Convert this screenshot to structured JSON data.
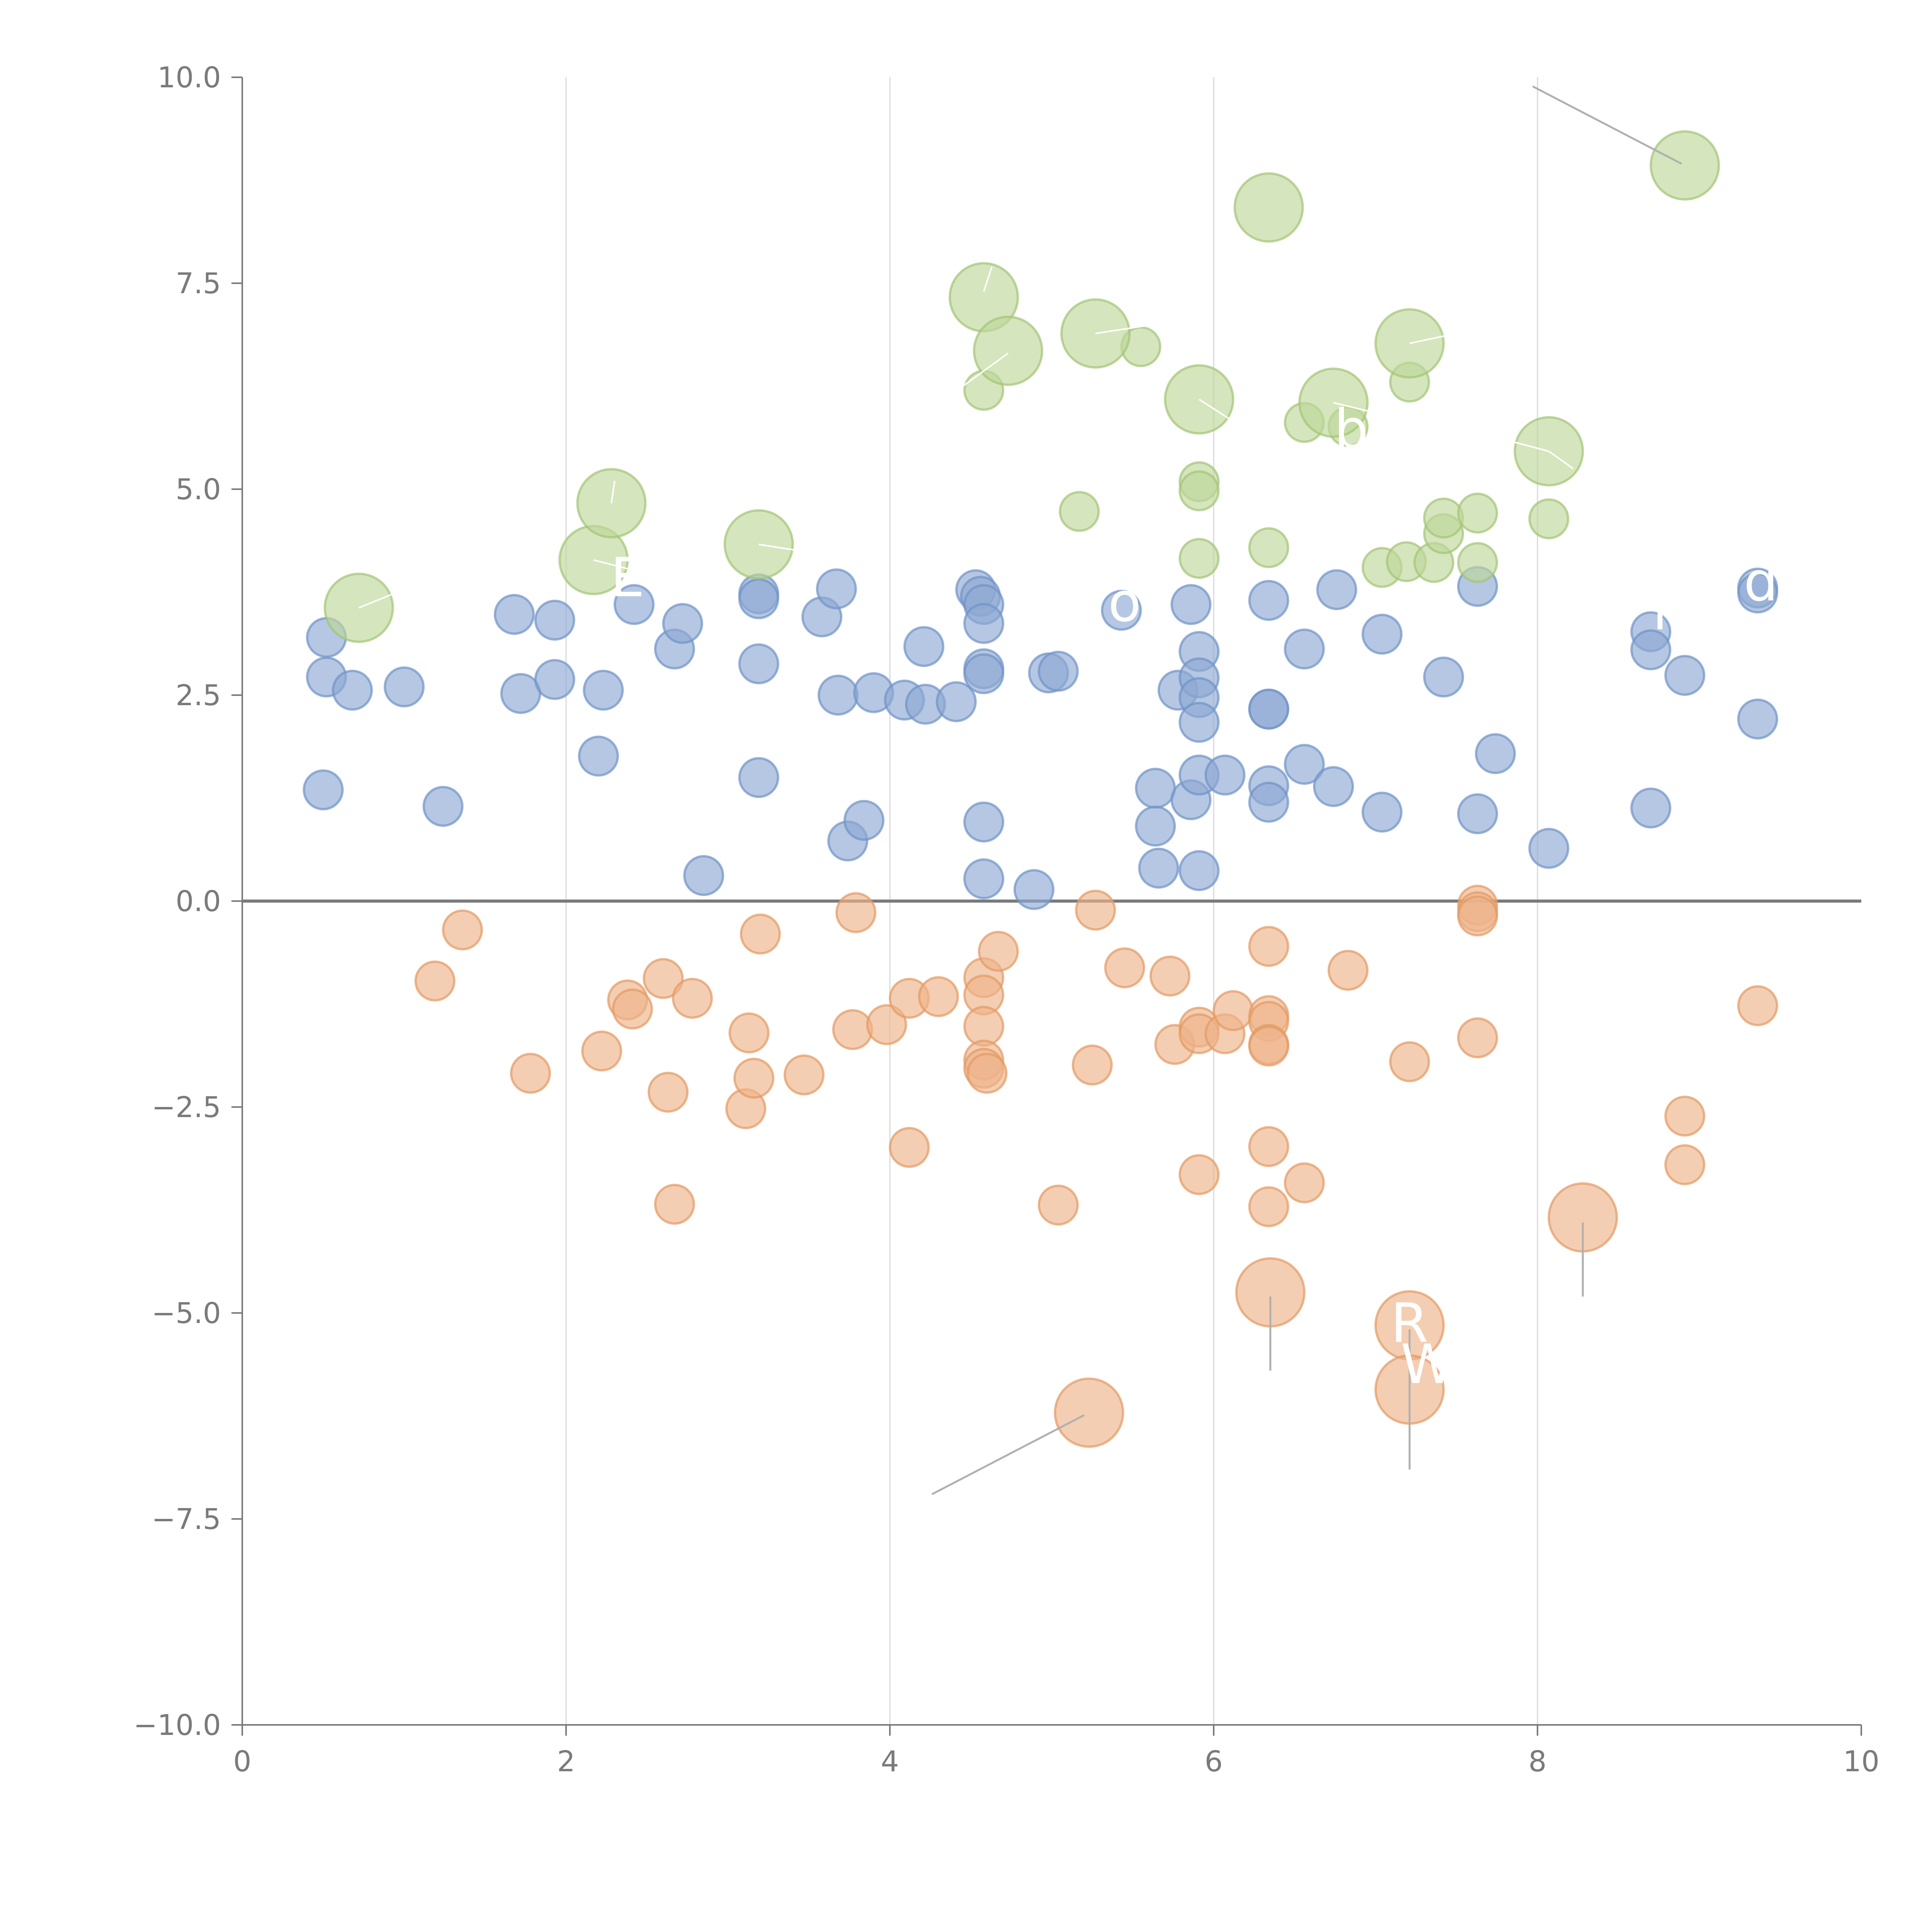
{
  "chart_data": {
    "type": "scatter",
    "title": "",
    "xlabel": "",
    "ylabel": "",
    "xlim": [
      0,
      10
    ],
    "ylim": [
      -10,
      10
    ],
    "xticks": [
      0,
      2,
      4,
      6,
      8,
      10
    ],
    "yticks": [
      -10,
      -7.5,
      -5,
      -2.5,
      0,
      2.5,
      5,
      7.5,
      10
    ],
    "xtick_labels": [
      "0",
      "2",
      "4",
      "6",
      "8",
      "10"
    ],
    "ytick_labels": [
      "−10.0",
      "−7.5",
      "−5.0",
      "−2.5",
      "0.0",
      "2.5",
      "5.0",
      "7.5",
      "10.0"
    ],
    "grid": "vertical",
    "zero_line": 0,
    "colors": {
      "neutral": "#8da9d3",
      "neutral_edge": "#6f93c8",
      "negative": "#eeb48b",
      "negative_edge": "#e39a62",
      "positive": "#bfd79a",
      "positive_edge": "#a3c475",
      "axis": "#7a7a7a",
      "grid": "#d9d9d9",
      "leader": "#b0b0b0"
    },
    "series": [
      {
        "name": "neutral",
        "color_key": "neutral",
        "points": [
          [
            0.5,
            1.35,
            1
          ],
          [
            0.52,
            2.72,
            1
          ],
          [
            0.52,
            3.2,
            1
          ],
          [
            0.68,
            2.56,
            1
          ],
          [
            1.0,
            2.6,
            1
          ],
          [
            1.24,
            1.15,
            1
          ],
          [
            1.68,
            3.48,
            1
          ],
          [
            1.72,
            2.52,
            1
          ],
          [
            1.93,
            3.41,
            1
          ],
          [
            1.93,
            2.69,
            1
          ],
          [
            2.2,
            1.76,
            1
          ],
          [
            2.23,
            2.56,
            1
          ],
          [
            2.42,
            3.6,
            1
          ],
          [
            2.67,
            3.06,
            1
          ],
          [
            2.72,
            3.37,
            1
          ],
          [
            2.85,
            0.31,
            1
          ],
          [
            3.19,
            3.73,
            1
          ],
          [
            3.19,
            3.67,
            1
          ],
          [
            3.19,
            2.88,
            1
          ],
          [
            3.19,
            1.5,
            1
          ],
          [
            3.58,
            3.45,
            1
          ],
          [
            3.67,
            3.79,
            1
          ],
          [
            3.68,
            2.5,
            1
          ],
          [
            3.74,
            0.73,
            1
          ],
          [
            3.84,
            0.98,
            1
          ],
          [
            3.9,
            2.53,
            1
          ],
          [
            4.09,
            2.44,
            1
          ],
          [
            4.21,
            3.09,
            1
          ],
          [
            4.22,
            2.39,
            1
          ],
          [
            4.41,
            2.42,
            1
          ],
          [
            4.53,
            3.78,
            1
          ],
          [
            4.56,
            3.7,
            1
          ],
          [
            4.58,
            3.6,
            1
          ],
          [
            4.58,
            3.37,
            1
          ],
          [
            4.58,
            2.82,
            1
          ],
          [
            4.58,
            2.76,
            1
          ],
          [
            4.58,
            0.96,
            1
          ],
          [
            4.58,
            0.27,
            1
          ],
          [
            4.89,
            0.14,
            1
          ],
          [
            4.98,
            2.77,
            1
          ],
          [
            5.04,
            2.79,
            1
          ],
          [
            5.43,
            3.53,
            1
          ],
          [
            5.64,
            1.37,
            1
          ],
          [
            5.64,
            0.91,
            1
          ],
          [
            5.66,
            0.4,
            1
          ],
          [
            5.78,
            2.56,
            1
          ],
          [
            5.86,
            3.6,
            1
          ],
          [
            5.86,
            1.23,
            1
          ],
          [
            5.91,
            3.03,
            1
          ],
          [
            5.91,
            2.71,
            1
          ],
          [
            5.91,
            2.47,
            1
          ],
          [
            5.91,
            2.17,
            1
          ],
          [
            5.91,
            1.53,
            1
          ],
          [
            5.91,
            0.37,
            1
          ],
          [
            6.07,
            1.53,
            1
          ],
          [
            6.34,
            3.65,
            1
          ],
          [
            6.34,
            2.33,
            1
          ],
          [
            6.34,
            2.33,
            1
          ],
          [
            6.34,
            1.4,
            1
          ],
          [
            6.34,
            1.2,
            1
          ],
          [
            6.56,
            3.06,
            1
          ],
          [
            6.56,
            1.66,
            1
          ],
          [
            6.74,
            1.39,
            1
          ],
          [
            6.76,
            3.78,
            1
          ],
          [
            7.04,
            3.24,
            1
          ],
          [
            7.04,
            1.08,
            1
          ],
          [
            7.42,
            2.72,
            1
          ],
          [
            7.63,
            3.82,
            1
          ],
          [
            7.63,
            1.06,
            1
          ],
          [
            7.74,
            1.79,
            1
          ],
          [
            8.07,
            0.64,
            1
          ],
          [
            8.7,
            3.27,
            1
          ],
          [
            8.7,
            3.05,
            1
          ],
          [
            8.7,
            1.13,
            1
          ],
          [
            8.91,
            2.74,
            1
          ],
          [
            9.36,
            3.8,
            1
          ],
          [
            9.36,
            3.74,
            1
          ],
          [
            9.36,
            2.21,
            1
          ]
        ]
      },
      {
        "name": "negative",
        "color_key": "negative",
        "points": [
          [
            1.19,
            -0.97,
            1
          ],
          [
            1.36,
            -0.35,
            1
          ],
          [
            1.78,
            -2.09,
            1
          ],
          [
            2.22,
            -1.82,
            1
          ],
          [
            2.38,
            -1.2,
            1
          ],
          [
            2.41,
            -1.31,
            1
          ],
          [
            2.6,
            -0.94,
            1
          ],
          [
            2.63,
            -2.32,
            1
          ],
          [
            2.67,
            -3.68,
            1
          ],
          [
            2.78,
            -1.18,
            1
          ],
          [
            3.11,
            -2.52,
            1
          ],
          [
            3.13,
            -1.6,
            1
          ],
          [
            3.16,
            -2.15,
            1
          ],
          [
            3.2,
            -0.4,
            1
          ],
          [
            3.47,
            -2.11,
            1
          ],
          [
            3.77,
            -1.56,
            1
          ],
          [
            3.79,
            -0.14,
            1
          ],
          [
            3.98,
            -1.5,
            1
          ],
          [
            4.12,
            -1.18,
            1
          ],
          [
            4.12,
            -2.99,
            1
          ],
          [
            4.3,
            -1.16,
            1
          ],
          [
            4.58,
            -0.93,
            1
          ],
          [
            4.58,
            -1.14,
            1
          ],
          [
            4.58,
            -1.52,
            1
          ],
          [
            4.58,
            -1.93,
            1
          ],
          [
            4.58,
            -2.03,
            1
          ],
          [
            4.6,
            -2.09,
            1
          ],
          [
            4.67,
            -0.61,
            1
          ],
          [
            5.04,
            -3.69,
            1
          ],
          [
            5.25,
            -1.99,
            1
          ],
          [
            5.27,
            -0.11,
            1
          ],
          [
            5.45,
            -0.81,
            1
          ],
          [
            5.73,
            -0.91,
            1
          ],
          [
            5.76,
            -1.74,
            1
          ],
          [
            5.91,
            -1.53,
            1
          ],
          [
            5.91,
            -1.61,
            1
          ],
          [
            5.91,
            -3.32,
            1
          ],
          [
            6.07,
            -1.61,
            1
          ],
          [
            6.12,
            -1.33,
            1
          ],
          [
            6.34,
            -0.55,
            1
          ],
          [
            6.34,
            -1.39,
            1
          ],
          [
            6.34,
            -1.46,
            1
          ],
          [
            6.34,
            -1.74,
            1
          ],
          [
            6.34,
            -1.76,
            1
          ],
          [
            6.34,
            -2.98,
            1
          ],
          [
            6.34,
            -3.71,
            1
          ],
          [
            6.56,
            -3.42,
            1
          ],
          [
            6.83,
            -0.84,
            1
          ],
          [
            7.21,
            -1.95,
            1
          ],
          [
            7.63,
            -0.05,
            1
          ],
          [
            7.63,
            -0.13,
            1
          ],
          [
            7.63,
            -0.18,
            1
          ],
          [
            7.63,
            -1.66,
            1
          ],
          [
            8.91,
            -2.61,
            1
          ],
          [
            8.91,
            -3.2,
            1
          ],
          [
            9.36,
            -1.27,
            1
          ],
          [
            5.23,
            -6.21,
            2
          ],
          [
            6.35,
            -4.75,
            2
          ],
          [
            7.21,
            -5.15,
            2
          ],
          [
            7.21,
            -5.93,
            2
          ],
          [
            8.28,
            -3.84,
            2
          ]
        ]
      },
      {
        "name": "positive",
        "color_key": "positive",
        "points": [
          [
            4.58,
            6.2,
            1
          ],
          [
            5.17,
            4.73,
            1
          ],
          [
            5.55,
            6.73,
            1
          ],
          [
            5.91,
            5.09,
            1
          ],
          [
            5.91,
            4.98,
            1
          ],
          [
            5.91,
            4.16,
            1
          ],
          [
            6.34,
            4.29,
            1
          ],
          [
            6.56,
            5.81,
            1
          ],
          [
            6.83,
            5.76,
            1
          ],
          [
            7.04,
            4.05,
            1
          ],
          [
            7.19,
            4.12,
            1
          ],
          [
            7.21,
            6.3,
            1
          ],
          [
            7.36,
            4.11,
            1
          ],
          [
            7.42,
            4.46,
            1
          ],
          [
            7.42,
            4.65,
            1
          ],
          [
            7.63,
            4.71,
            1
          ],
          [
            7.63,
            4.11,
            1
          ],
          [
            8.07,
            4.64,
            1
          ],
          [
            0.72,
            3.56,
            2
          ],
          [
            2.17,
            4.14,
            2
          ],
          [
            2.28,
            4.83,
            2
          ],
          [
            3.19,
            4.33,
            2
          ],
          [
            4.58,
            7.33,
            2
          ],
          [
            4.73,
            6.68,
            2
          ],
          [
            5.27,
            6.89,
            2
          ],
          [
            5.91,
            6.09,
            2
          ],
          [
            6.34,
            8.42,
            2
          ],
          [
            6.74,
            6.05,
            2
          ],
          [
            7.21,
            6.77,
            2
          ],
          [
            8.07,
            5.46,
            2
          ],
          [
            8.91,
            8.93,
            2
          ]
        ]
      }
    ],
    "leader_lines": [
      {
        "from": [
          8.89,
          8.95
        ],
        "to": [
          7.97,
          9.89
        ],
        "color_key": "leader"
      },
      {
        "from": [
          5.2,
          -6.24
        ],
        "to": [
          4.26,
          -7.2
        ],
        "color_key": "leader"
      },
      {
        "from": [
          6.35,
          -4.8
        ],
        "to": [
          6.35,
          -5.7
        ],
        "color_key": "leader"
      },
      {
        "from": [
          7.21,
          -5.2
        ],
        "to": [
          7.21,
          -6.1
        ],
        "color_key": "leader"
      },
      {
        "from": [
          7.21,
          -6.0
        ],
        "to": [
          7.21,
          -6.9
        ],
        "color_key": "leader"
      },
      {
        "from": [
          8.28,
          -3.9
        ],
        "to": [
          8.28,
          -4.8
        ],
        "color_key": "leader"
      },
      {
        "from": [
          4.58,
          7.4
        ],
        "to": [
          4.63,
          7.7
        ],
        "color_key": "white"
      },
      {
        "from": [
          4.73,
          6.65
        ],
        "to": [
          4.45,
          6.25
        ],
        "color_key": "white"
      },
      {
        "from": [
          5.27,
          6.89
        ],
        "to": [
          5.6,
          6.99
        ],
        "color_key": "white"
      },
      {
        "from": [
          5.91,
          6.09
        ],
        "to": [
          6.1,
          5.85
        ],
        "color_key": "white"
      },
      {
        "from": [
          6.74,
          6.05
        ],
        "to": [
          6.95,
          5.95
        ],
        "color_key": "white"
      },
      {
        "from": [
          7.21,
          6.77
        ],
        "to": [
          7.45,
          6.87
        ],
        "color_key": "white"
      },
      {
        "from": [
          8.07,
          5.46
        ],
        "to": [
          8.22,
          5.25
        ],
        "color_key": "white"
      },
      {
        "from": [
          8.07,
          5.46
        ],
        "to": [
          7.8,
          5.6
        ],
        "color_key": "white"
      },
      {
        "from": [
          2.28,
          4.83
        ],
        "to": [
          2.3,
          5.1
        ],
        "color_key": "white"
      },
      {
        "from": [
          2.17,
          4.14
        ],
        "to": [
          2.45,
          4.0
        ],
        "color_key": "white"
      },
      {
        "from": [
          3.19,
          4.33
        ],
        "to": [
          3.45,
          4.25
        ],
        "color_key": "white"
      },
      {
        "from": [
          0.72,
          3.56
        ],
        "to": [
          0.92,
          3.72
        ],
        "color_key": "white"
      }
    ],
    "annotations": [
      {
        "text": "R",
        "x": 7.21,
        "y": -5.35
      },
      {
        "text": "W",
        "x": 7.32,
        "y": -5.85
      },
      {
        "text": "E",
        "x": 2.38,
        "y": 3.7
      },
      {
        "text": "o",
        "x": 5.45,
        "y": 3.4
      },
      {
        "text": "b",
        "x": 6.85,
        "y": 5.5
      },
      {
        "text": "r",
        "x": 8.78,
        "y": 3.3
      },
      {
        "text": "d",
        "x": 9.38,
        "y": 3.65
      }
    ]
  }
}
